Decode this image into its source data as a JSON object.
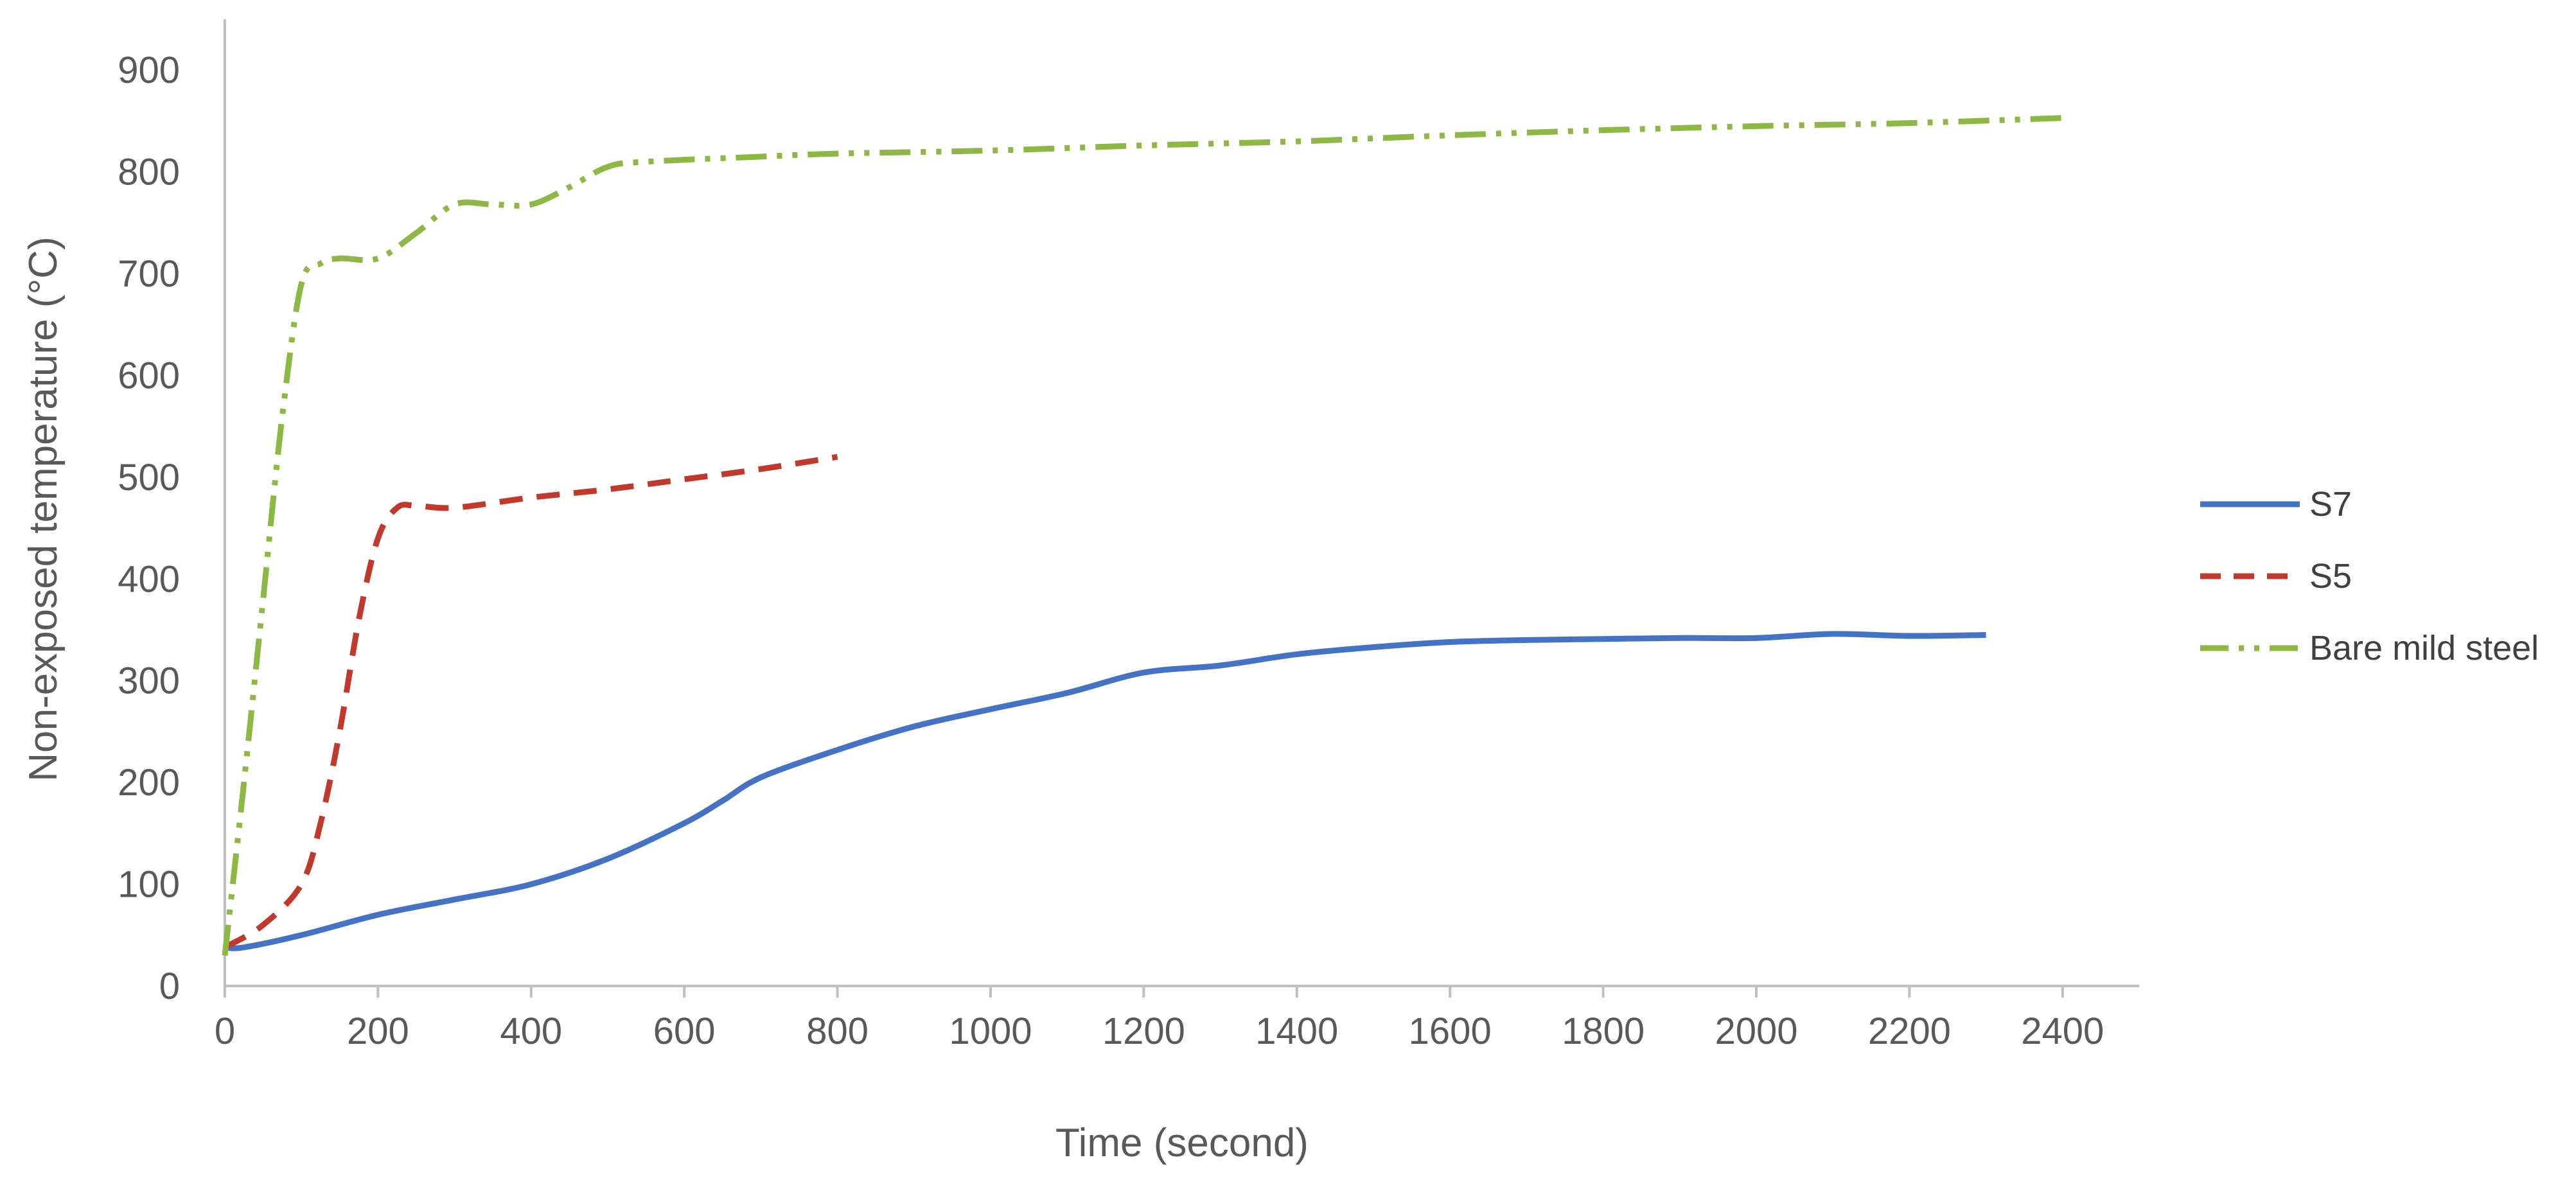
{
  "chart_data": {
    "type": "line",
    "title": "",
    "xlabel": "Time (second)",
    "ylabel": "Non-exposed temperature (°C)",
    "xlim": [
      0,
      2500
    ],
    "ylim": [
      0,
      950
    ],
    "x_ticks": [
      0,
      200,
      400,
      600,
      800,
      1000,
      1200,
      1400,
      1600,
      1800,
      2000,
      2200,
      2400
    ],
    "y_ticks": [
      0,
      100,
      200,
      300,
      400,
      500,
      600,
      700,
      800,
      900
    ],
    "grid": false,
    "legend_position": "right",
    "series": [
      {
        "name": "S7",
        "color": "#4472C4",
        "style": "solid",
        "points": [
          [
            0,
            38
          ],
          [
            25,
            38
          ],
          [
            100,
            50
          ],
          [
            200,
            70
          ],
          [
            300,
            85
          ],
          [
            400,
            100
          ],
          [
            500,
            125
          ],
          [
            600,
            160
          ],
          [
            650,
            182
          ],
          [
            700,
            205
          ],
          [
            800,
            232
          ],
          [
            900,
            255
          ],
          [
            1000,
            272
          ],
          [
            1100,
            288
          ],
          [
            1200,
            308
          ],
          [
            1300,
            315
          ],
          [
            1400,
            326
          ],
          [
            1500,
            333
          ],
          [
            1600,
            338
          ],
          [
            1700,
            340
          ],
          [
            1800,
            341
          ],
          [
            1900,
            342
          ],
          [
            2000,
            342
          ],
          [
            2100,
            346
          ],
          [
            2200,
            344
          ],
          [
            2300,
            345
          ]
        ]
      },
      {
        "name": "S5",
        "color": "#C0392B",
        "style": "dashed",
        "points": [
          [
            0,
            38
          ],
          [
            50,
            60
          ],
          [
            100,
            100
          ],
          [
            125,
            160
          ],
          [
            150,
            250
          ],
          [
            175,
            360
          ],
          [
            200,
            440
          ],
          [
            225,
            470
          ],
          [
            250,
            472
          ],
          [
            300,
            470
          ],
          [
            400,
            480
          ],
          [
            500,
            488
          ],
          [
            600,
            498
          ],
          [
            700,
            508
          ],
          [
            800,
            520
          ]
        ]
      },
      {
        "name": "Bare mild steel",
        "color": "#8DB843",
        "style": "dash-dot-dot",
        "points": [
          [
            0,
            30
          ],
          [
            25,
            200
          ],
          [
            50,
            380
          ],
          [
            75,
            560
          ],
          [
            100,
            690
          ],
          [
            125,
            710
          ],
          [
            150,
            715
          ],
          [
            200,
            715
          ],
          [
            250,
            740
          ],
          [
            300,
            768
          ],
          [
            350,
            768
          ],
          [
            400,
            768
          ],
          [
            450,
            785
          ],
          [
            500,
            805
          ],
          [
            550,
            810
          ],
          [
            700,
            815
          ],
          [
            800,
            818
          ],
          [
            1000,
            821
          ],
          [
            1200,
            826
          ],
          [
            1400,
            830
          ],
          [
            1600,
            836
          ],
          [
            1800,
            841
          ],
          [
            2000,
            845
          ],
          [
            2200,
            848
          ],
          [
            2400,
            853
          ]
        ]
      }
    ]
  }
}
